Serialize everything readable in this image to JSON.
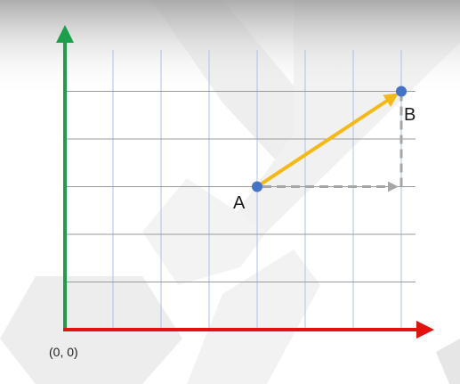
{
  "labels": {
    "point_a": "A",
    "point_b": "B",
    "origin": "(0, 0)"
  },
  "points": {
    "a": {
      "gx": 4,
      "gy": 3
    },
    "b": {
      "gx": 7,
      "gy": 5
    }
  },
  "grid": {
    "columns": 7,
    "rows": 5
  },
  "colors": {
    "y_axis": "#1aa04a",
    "x_axis": "#e0130f",
    "vector": "#f5b915",
    "component_dashes": "#a6a6a6",
    "point_fill": "#4472c4",
    "grid_vertical": "#a9c3ea",
    "grid_horizontal": "#9a9a9a"
  }
}
